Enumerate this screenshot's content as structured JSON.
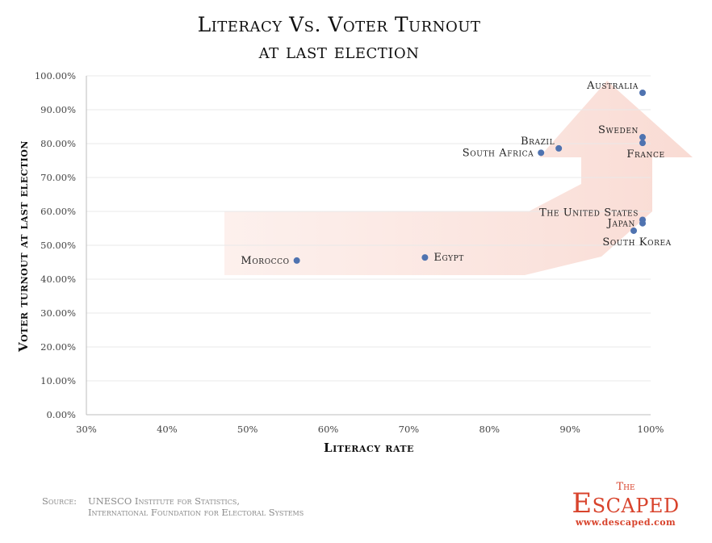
{
  "chart_data": {
    "type": "scatter",
    "title": "Literacy Vs. Voter Turnout",
    "subtitle": "at last election",
    "xlabel": "Literacy rate",
    "ylabel": "Voter turnout at last election",
    "xlim": [
      30,
      100
    ],
    "ylim": [
      0,
      100
    ],
    "xticks": [
      "30%",
      "40%",
      "50%",
      "60%",
      "70%",
      "80%",
      "90%",
      "100%"
    ],
    "yticks": [
      "0.00%",
      "10.00%",
      "20.00%",
      "30.00%",
      "40.00%",
      "50.00%",
      "60.00%",
      "70.00%",
      "80.00%",
      "90.00%",
      "100.00%"
    ],
    "grid": true,
    "points": [
      {
        "label": "Morocco",
        "x": 56.1,
        "y": 45.5,
        "label_pos": "left"
      },
      {
        "label": "Egypt",
        "x": 72.0,
        "y": 46.4,
        "label_pos": "right"
      },
      {
        "label": "South Africa",
        "x": 86.4,
        "y": 77.3,
        "label_pos": "left"
      },
      {
        "label": "Brazil",
        "x": 88.6,
        "y": 78.6,
        "label_pos": "above-left"
      },
      {
        "label": "Australia",
        "x": 99.0,
        "y": 95.0,
        "label_pos": "above-left"
      },
      {
        "label": "Sweden",
        "x": 99.0,
        "y": 81.9,
        "label_pos": "above-left"
      },
      {
        "label": "France",
        "x": 99.0,
        "y": 80.2,
        "label_pos": "below"
      },
      {
        "label": "The United States",
        "x": 99.0,
        "y": 57.5,
        "label_pos": "above-left"
      },
      {
        "label": "Japan",
        "x": 99.0,
        "y": 56.5,
        "label_pos": "left"
      },
      {
        "label": "South Korea",
        "x": 97.9,
        "y": 54.3,
        "label_pos": "below"
      }
    ],
    "point_color": "#4f73b0"
  },
  "source": {
    "label": "Source:",
    "line1": "UNESCO Institute for Statistics,",
    "line2": "International Foundation for Electoral Systems"
  },
  "logo": {
    "the": "The",
    "name": "Escaped",
    "url": "www.descaped.com"
  }
}
